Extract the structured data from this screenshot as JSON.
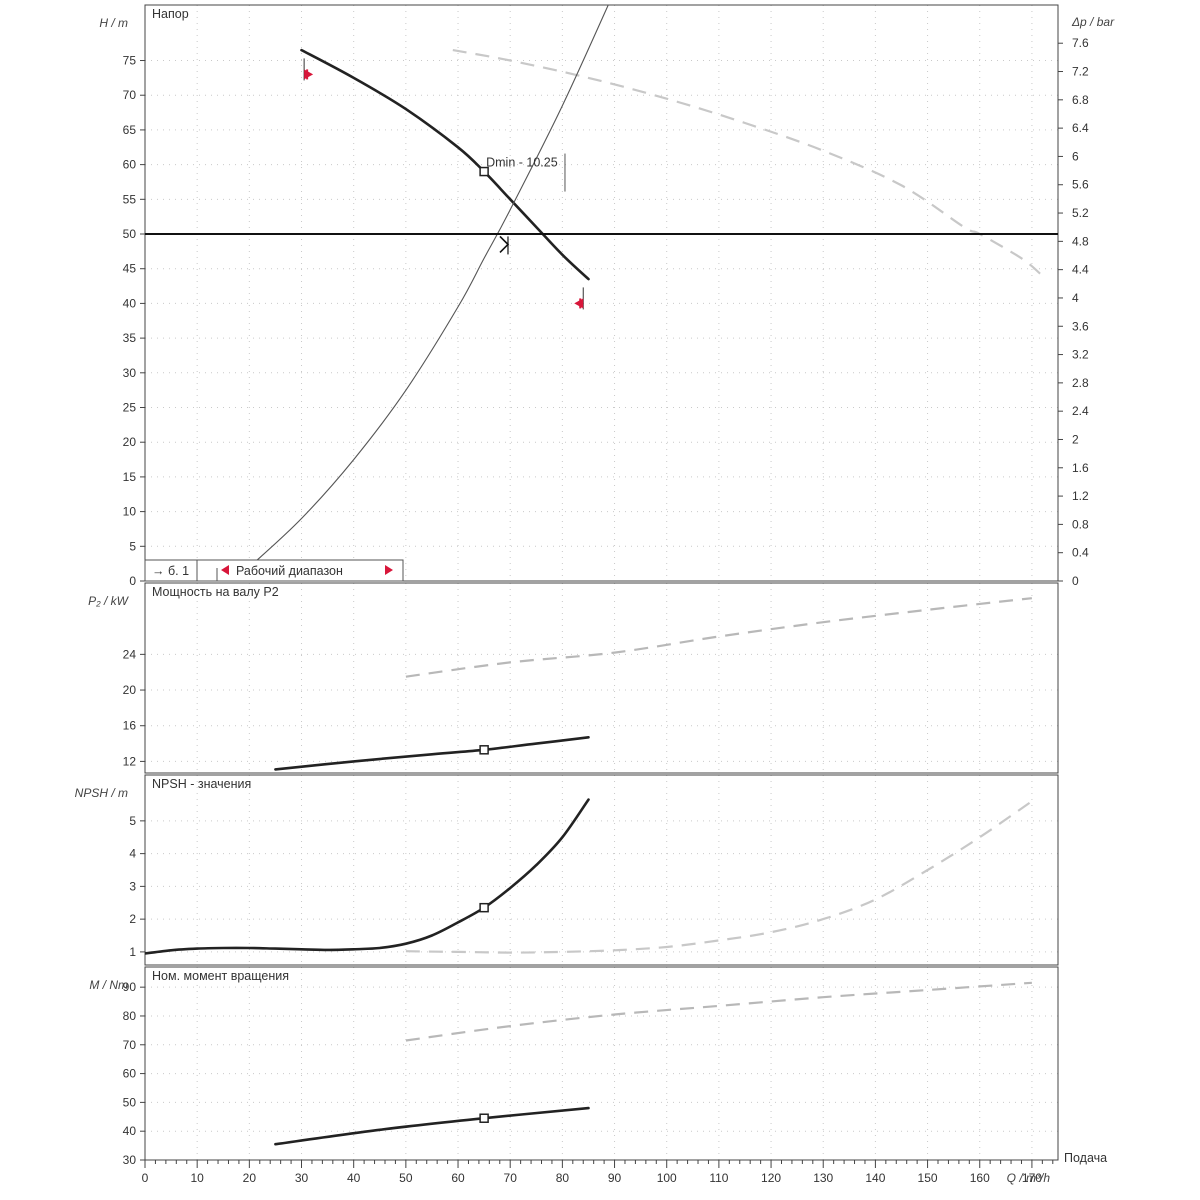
{
  "chart_data": [
    {
      "type": "line",
      "title": "Напор",
      "xlabel": "Q / m³/h",
      "ylabel": "H / m",
      "y2label": "Δp / bar",
      "xlim": [
        0,
        175
      ],
      "ylim": [
        0,
        83
      ],
      "y2lim": [
        0,
        8.14
      ],
      "grid": true,
      "x_ticks": [
        0,
        10,
        20,
        30,
        40,
        50,
        60,
        70,
        80,
        90,
        100,
        110,
        120,
        130,
        140,
        150,
        160,
        170
      ],
      "y_ticks": [
        0,
        5,
        10,
        15,
        20,
        25,
        30,
        35,
        40,
        45,
        50,
        55,
        60,
        65,
        70,
        75
      ],
      "y2_ticks": [
        "0",
        "0.4",
        "0.8",
        "1.2",
        "1.6",
        "2",
        "2.4",
        "2.8",
        "3.2",
        "3.6",
        "4",
        "4.4",
        "4.8",
        "5.2",
        "5.6",
        "6",
        "6.4",
        "6.8",
        "7.2",
        "7.6"
      ],
      "series": [
        {
          "role": "pump",
          "style": "solid",
          "color": "#222222",
          "x": [
            30,
            40,
            50,
            60,
            65,
            70,
            75,
            80,
            85
          ],
          "y": [
            76.5,
            72.5,
            68,
            62.5,
            59,
            55,
            51,
            47,
            43.5
          ]
        },
        {
          "role": "pump-max",
          "style": "dashed",
          "color": "#c8c8c8",
          "x": [
            59,
            70,
            85,
            100,
            115,
            130,
            145,
            157,
            160,
            168,
            172
          ],
          "y": [
            76.5,
            75,
            72.5,
            69.5,
            66,
            62,
            57,
            51,
            50,
            46.5,
            44
          ]
        },
        {
          "role": "system",
          "style": "thin",
          "color": "#555555",
          "x": [
            20,
            30,
            40,
            50,
            60,
            65,
            70,
            80,
            90
          ],
          "y": [
            2,
            9,
            17.5,
            27.5,
            39.5,
            46.5,
            53.5,
            68.5,
            85
          ]
        }
      ],
      "operating_line_y": 50,
      "duty_point": {
        "x": 65,
        "y": 59,
        "label": "Dmin - 10.25"
      },
      "work_point": {
        "x": 69,
        "y": 48.5
      },
      "range_markers": [
        {
          "x": 30.5,
          "y": 73
        },
        {
          "x": 84,
          "y": 40
        }
      ],
      "legend": {
        "left_label": "→ б. 1",
        "range_label": "Рабочий диапазон"
      }
    },
    {
      "type": "line",
      "title": "Мощность на валу P2",
      "ylabel": "P₂ / kW",
      "ylim": [
        10.7,
        32
      ],
      "y_ticks": [
        12,
        16,
        20,
        24
      ],
      "series": [
        {
          "role": "pump",
          "style": "solid",
          "color": "#222222",
          "x": [
            25,
            40,
            55,
            65,
            75,
            85
          ],
          "y": [
            11.1,
            12.0,
            12.8,
            13.3,
            14.0,
            14.7
          ]
        },
        {
          "role": "pump-max",
          "style": "dashed",
          "color": "#b8b8b8",
          "x": [
            50,
            70,
            90,
            110,
            130,
            150,
            170
          ],
          "y": [
            21.5,
            23.1,
            24.2,
            26.0,
            27.6,
            29.0,
            30.3
          ]
        }
      ],
      "duty_point": {
        "x": 65,
        "y": 13.3
      }
    },
    {
      "type": "line",
      "title": "NPSH - значения",
      "ylabel": "NPSH / m",
      "ylim": [
        0.6,
        6.4
      ],
      "y_ticks": [
        1,
        2,
        3,
        4,
        5
      ],
      "series": [
        {
          "role": "pump",
          "style": "solid",
          "color": "#222222",
          "x": [
            0,
            5,
            10,
            15,
            20,
            25,
            30,
            35,
            40,
            45,
            50,
            55,
            60,
            65,
            70,
            75,
            80,
            85
          ],
          "y": [
            0.95,
            1.05,
            1.1,
            1.12,
            1.12,
            1.1,
            1.08,
            1.06,
            1.08,
            1.12,
            1.25,
            1.5,
            1.9,
            2.35,
            2.95,
            3.65,
            4.5,
            5.65
          ]
        },
        {
          "role": "pump-max",
          "style": "dashed",
          "color": "#c8c8c8",
          "x": [
            50,
            60,
            70,
            80,
            90,
            100,
            110,
            120,
            130,
            140,
            150,
            160,
            170
          ],
          "y": [
            1.02,
            1.0,
            0.98,
            1.0,
            1.05,
            1.15,
            1.35,
            1.6,
            2.0,
            2.6,
            3.5,
            4.5,
            5.6
          ]
        }
      ],
      "duty_point": {
        "x": 65,
        "y": 2.35
      }
    },
    {
      "type": "line",
      "title": "Ном. момент вращения",
      "ylabel": "M / Nm",
      "xlabel": "Q / m³/h",
      "x_end_label": "Подача",
      "ylim": [
        30,
        97
      ],
      "y_ticks": [
        30,
        40,
        50,
        60,
        70,
        80,
        90
      ],
      "series": [
        {
          "role": "pump",
          "style": "solid",
          "color": "#222222",
          "x": [
            25,
            45,
            65,
            85
          ],
          "y": [
            35.5,
            40.5,
            44.5,
            48
          ]
        },
        {
          "role": "pump-max",
          "style": "dashed",
          "color": "#b8b8b8",
          "x": [
            50,
            70,
            90,
            110,
            130,
            150,
            170
          ],
          "y": [
            71.5,
            76.5,
            80.5,
            83.5,
            86.5,
            89,
            91.5
          ]
        }
      ],
      "duty_point": {
        "x": 65,
        "y": 44.5
      }
    }
  ]
}
